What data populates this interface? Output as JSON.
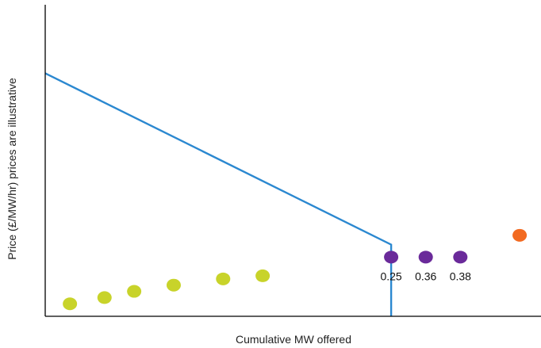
{
  "chart_data": {
    "type": "scatter",
    "title": "",
    "xlabel": "Cumulative MW offered",
    "ylabel": "Price (£/MW/hr) prices are illustrative",
    "grid": false,
    "legend": "none",
    "xlim": [
      0,
      100
    ],
    "ylim": [
      0,
      100
    ],
    "series": [
      {
        "color": "#c8d32a",
        "points": [
          {
            "x": 5,
            "y": 4
          },
          {
            "x": 12,
            "y": 6
          },
          {
            "x": 18,
            "y": 8
          },
          {
            "x": 26,
            "y": 10
          },
          {
            "x": 36,
            "y": 12
          },
          {
            "x": 44,
            "y": 13
          }
        ]
      },
      {
        "color": "#6a2a9a",
        "points": [
          {
            "x": 70,
            "y": 19,
            "label": "0.25"
          },
          {
            "x": 77,
            "y": 19,
            "label": "0.36"
          },
          {
            "x": 84,
            "y": 19,
            "label": "0.38"
          }
        ]
      },
      {
        "color": "#f26a21",
        "points": [
          {
            "x": 96,
            "y": 26
          }
        ]
      }
    ],
    "line": {
      "color": "#2b88d0",
      "points": [
        {
          "x": 0,
          "y": 78
        },
        {
          "x": 70,
          "y": 23
        },
        {
          "x": 70,
          "y": 0
        }
      ]
    }
  }
}
